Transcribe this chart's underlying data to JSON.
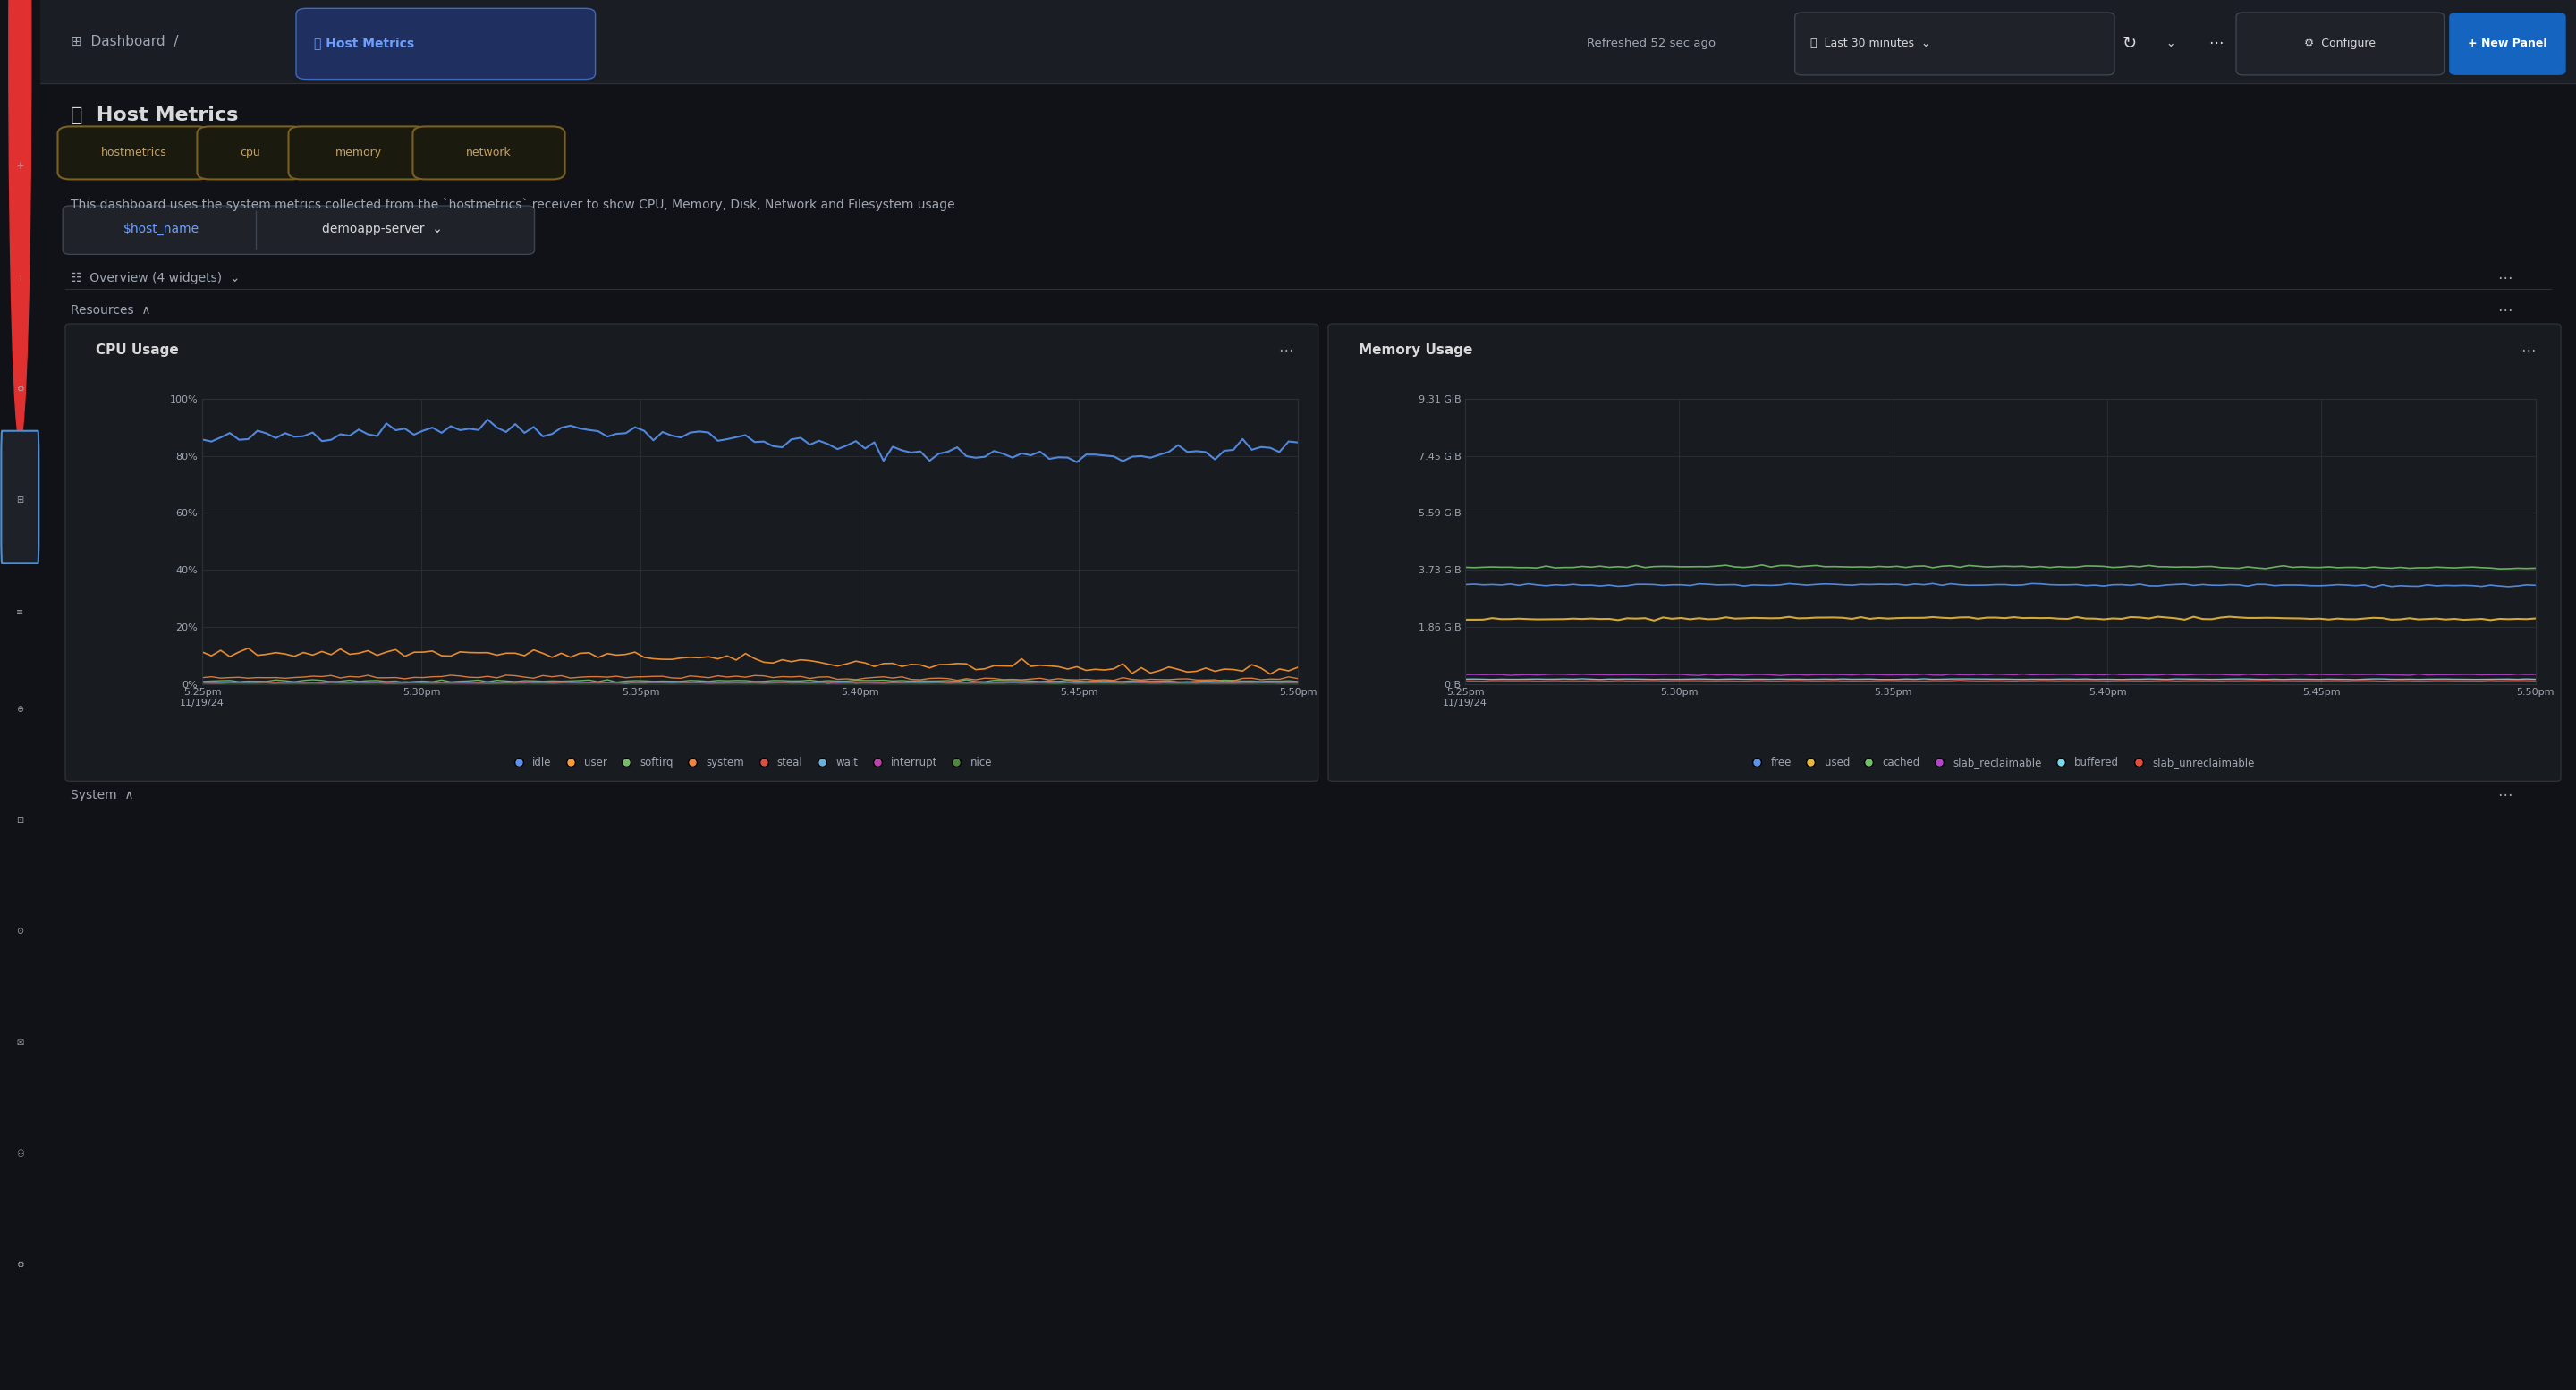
{
  "bg_color": "#111217",
  "sidebar_color": "#181b1f",
  "panel_bg": "#181b1f",
  "panel_border": "#2d3035",
  "text_primary": "#d8d9da",
  "text_secondary": "#9fa7b3",
  "text_blue": "#6e9fff",
  "text_orange": "#ff9830",
  "accent_blue": "#3d71d9",
  "title": "Host Metrics",
  "breadcrumb": "Dashboard / Host Metrics",
  "refresh_text": "Refreshed 52 sec ago",
  "time_range": "Last 30 minutes",
  "description": "This dashboard uses the system metrics collected from the `hostmetrics` receiver to show CPU, Memory, Disk, Network and Filesystem usage",
  "tags": [
    "hostmetrics",
    "cpu",
    "memory",
    "network"
  ],
  "var_name": "$host_name",
  "var_value": "demoapp-server",
  "section_overview": "Overview (4 widgets)",
  "section_resources": "Resources",
  "section_system": "System",
  "cpu_title": "CPU Usage",
  "mem_title": "Memory Usage",
  "cpu_yticks": [
    "0%",
    "20%",
    "40%",
    "60%",
    "80%",
    "100%"
  ],
  "cpu_yvals": [
    0,
    20,
    40,
    60,
    80,
    100
  ],
  "mem_yticks": [
    "0 B",
    "1.86 GiB",
    "3.73 GiB",
    "5.59 GiB",
    "7.45 GiB",
    "9.31 GiB"
  ],
  "mem_yvals": [
    0,
    1.86,
    3.73,
    5.59,
    7.45,
    9.31
  ],
  "xticks": [
    "5:25pm\n11/19/24",
    "5:30pm",
    "5:35pm",
    "5:40pm",
    "5:45pm",
    "5:50pm"
  ],
  "cpu_legend": [
    "idle",
    "user",
    "softirq",
    "system",
    "steal",
    "wait",
    "interrupt",
    "nice"
  ],
  "cpu_colors": [
    "#5794F2",
    "#FF9830",
    "#73BF69",
    "#EF843C",
    "#E24D42",
    "#6BAED6",
    "#BA43A9",
    "#508642"
  ],
  "mem_legend": [
    "free",
    "used",
    "cached",
    "slab_reclaimable",
    "buffered",
    "slab_unreclaimable"
  ],
  "mem_colors": [
    "#5794F2",
    "#EAB839",
    "#73BF69",
    "#B742D0",
    "#70DBED",
    "#E24D42"
  ]
}
